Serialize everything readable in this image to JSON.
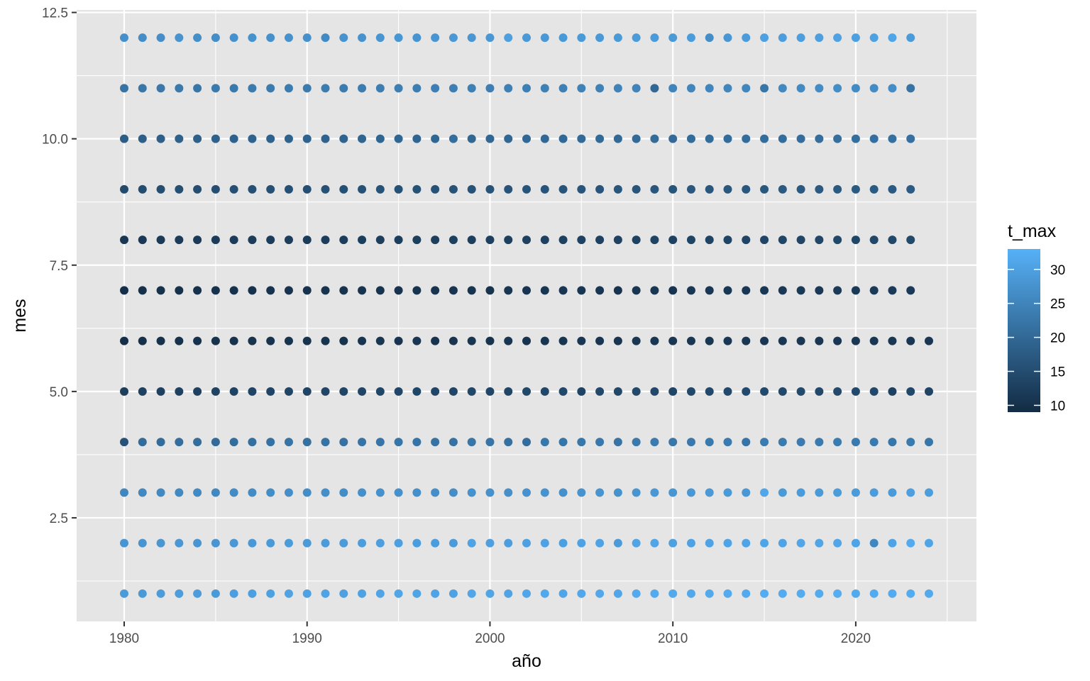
{
  "chart_data": {
    "type": "scatter",
    "title": "",
    "xlabel": "año",
    "ylabel": "mes",
    "xlim": [
      1977.4,
      2026.6
    ],
    "ylim": [
      0.45,
      12.55
    ],
    "x_ticks": [
      1980,
      1990,
      2000,
      2010,
      2020
    ],
    "x_tick_labels": [
      "1980",
      "1990",
      "2000",
      "2010",
      "2020"
    ],
    "y_ticks": [
      2.5,
      5.0,
      7.5,
      10.0,
      12.5
    ],
    "y_tick_labels": [
      "2.5",
      "5.0",
      "7.5",
      "10.0",
      "12.5"
    ],
    "grid": true,
    "legend": {
      "title": "t_max",
      "placement": "right",
      "min": 9,
      "max": 33,
      "ticks": [
        10,
        15,
        20,
        25,
        30
      ],
      "tick_labels": [
        "10",
        "15",
        "20",
        "25",
        "30"
      ],
      "color_low": "#132B43",
      "color_high": "#56B1F7"
    },
    "colors": {
      "panel_background": "#e5e5e5",
      "grid_line": "#ffffff"
    },
    "x_start": 1980,
    "series": [
      {
        "mes": 1,
        "t_max": [
          29.0,
          28.8,
          29.2,
          29.5,
          29.3,
          28.9,
          29.6,
          29.8,
          30.1,
          30.4,
          30.2,
          30.5,
          30.0,
          30.3,
          30.7,
          30.9,
          30.6,
          30.4,
          30.2,
          31.0,
          30.8,
          30.6,
          31.1,
          31.3,
          30.9,
          31.2,
          31.4,
          31.0,
          31.6,
          31.9,
          31.5,
          31.3,
          31.7,
          31.8,
          31.6,
          32.0,
          31.8,
          32.1,
          31.9,
          32.2,
          31.7,
          31.9,
          31.8,
          32.0,
          31.5
        ]
      },
      {
        "mes": 2,
        "t_max": [
          28.0,
          27.8,
          28.1,
          28.3,
          28.0,
          27.9,
          28.4,
          28.6,
          28.9,
          29.2,
          29.0,
          29.3,
          29.1,
          29.4,
          29.6,
          29.8,
          29.5,
          29.2,
          29.0,
          30.4,
          29.8,
          29.6,
          30.1,
          30.3,
          29.9,
          30.2,
          30.4,
          29.0,
          30.6,
          30.8,
          30.1,
          30.3,
          30.5,
          30.7,
          30.6,
          30.9,
          30.7,
          31.0,
          30.8,
          31.1,
          30.6,
          25.5,
          30.5,
          31.8,
          30.9
        ]
      },
      {
        "mes": 3,
        "t_max": [
          25.5,
          25.6,
          25.8,
          25.9,
          26.0,
          25.7,
          26.2,
          26.4,
          26.7,
          26.8,
          26.6,
          26.9,
          26.7,
          27.0,
          27.1,
          27.3,
          27.0,
          26.8,
          26.6,
          27.4,
          27.2,
          27.0,
          27.5,
          27.7,
          27.3,
          27.6,
          27.8,
          27.4,
          28.0,
          28.4,
          28.1,
          28.3,
          28.6,
          28.8,
          28.5,
          31.0,
          28.8,
          29.1,
          28.9,
          29.2,
          29.0,
          29.3,
          29.1,
          29.8,
          29.4
        ]
      },
      {
        "mes": 4,
        "t_max": [
          16.0,
          20.5,
          20.6,
          21.0,
          20.8,
          20.3,
          20.9,
          21.1,
          21.6,
          21.9,
          21.3,
          21.7,
          21.6,
          21.9,
          22.1,
          22.3,
          22.0,
          21.8,
          21.6,
          22.4,
          22.2,
          21.4,
          20.8,
          22.6,
          22.3,
          22.6,
          22.8,
          21.9,
          23.0,
          23.4,
          22.6,
          22.8,
          23.0,
          23.2,
          22.0,
          23.4,
          23.1,
          23.4,
          23.2,
          23.5,
          23.0,
          23.2,
          22.5,
          23.1,
          22.4
        ]
      },
      {
        "mes": 5,
        "t_max": [
          12.5,
          13.0,
          13.0,
          13.2,
          13.0,
          13.1,
          13.3,
          13.4,
          13.5,
          13.6,
          13.5,
          13.7,
          13.6,
          13.7,
          13.8,
          13.9,
          13.8,
          13.6,
          13.7,
          14.0,
          13.9,
          13.8,
          14.0,
          14.1,
          14.0,
          13.5,
          14.2,
          14.0,
          14.3,
          14.4,
          13.6,
          14.2,
          14.3,
          14.4,
          14.3,
          14.5,
          14.4,
          14.5,
          14.4,
          14.6,
          14.3,
          14.2,
          13.0,
          14.1,
          13.4
        ]
      },
      {
        "mes": 6,
        "t_max": [
          9.8,
          9.9,
          10.0,
          10.1,
          10.0,
          10.2,
          10.3,
          10.4,
          10.5,
          10.6,
          10.4,
          10.6,
          10.5,
          10.7,
          10.8,
          10.7,
          10.8,
          10.6,
          10.7,
          10.9,
          10.6,
          10.8,
          10.5,
          10.9,
          10.8,
          11.0,
          10.9,
          10.7,
          11.0,
          11.1,
          11.0,
          11.1,
          11.0,
          11.2,
          11.1,
          11.2,
          11.1,
          11.2,
          11.0,
          11.2,
          11.1,
          11.2,
          11.0,
          11.1,
          11.0
        ]
      },
      {
        "mes": 7,
        "t_max": [
          9.5,
          9.9,
          10.0,
          10.0,
          10.1,
          10.2,
          10.3,
          10.1,
          10.2,
          10.4,
          10.3,
          10.5,
          10.4,
          10.6,
          10.5,
          10.4,
          10.6,
          10.5,
          10.7,
          10.6,
          10.5,
          10.8,
          10.7,
          10.9,
          10.8,
          10.9,
          10.8,
          10.5,
          10.9,
          11.0,
          10.7,
          11.0,
          11.0,
          11.1,
          11.2,
          11.3,
          11.4,
          11.5,
          11.4,
          11.6,
          11.5,
          11.7,
          11.6,
          11.5
        ]
      },
      {
        "mes": 8,
        "t_max": [
          11.0,
          11.5,
          11.6,
          11.8,
          11.7,
          11.9,
          12.0,
          12.1,
          12.0,
          12.2,
          12.1,
          12.3,
          12.2,
          12.4,
          12.5,
          12.4,
          12.6,
          12.5,
          12.7,
          12.6,
          12.8,
          12.7,
          12.9,
          13.0,
          12.9,
          13.1,
          13.0,
          13.2,
          13.1,
          13.3,
          13.2,
          13.4,
          13.3,
          13.5,
          13.4,
          13.6,
          13.8,
          13.7,
          13.9,
          14.0,
          13.8,
          14.1,
          14.0,
          14.2
        ]
      },
      {
        "mes": 9,
        "t_max": [
          14.5,
          14.9,
          15.0,
          15.2,
          15.1,
          15.3,
          15.4,
          15.5,
          15.4,
          15.6,
          15.5,
          15.7,
          15.6,
          15.8,
          15.9,
          15.8,
          16.0,
          15.9,
          16.1,
          16.0,
          16.2,
          16.1,
          16.3,
          16.4,
          16.3,
          16.5,
          16.4,
          16.6,
          16.5,
          16.7,
          16.6,
          16.8,
          16.7,
          16.9,
          16.8,
          17.0,
          17.2,
          17.1,
          17.3,
          17.4,
          17.2,
          17.5,
          17.4,
          17.6
        ]
      },
      {
        "mes": 10,
        "t_max": [
          18.0,
          18.3,
          18.4,
          18.6,
          18.5,
          18.7,
          18.8,
          18.9,
          18.8,
          19.0,
          19.1,
          19.0,
          19.2,
          19.3,
          19.4,
          19.5,
          19.4,
          19.6,
          21.0,
          19.7,
          19.8,
          19.7,
          19.9,
          20.0,
          19.9,
          20.1,
          20.2,
          20.1,
          20.3,
          20.4,
          20.3,
          20.5,
          20.4,
          20.6,
          20.7,
          20.8,
          20.7,
          20.9,
          21.0,
          21.1,
          21.0,
          21.2,
          21.3,
          21.4
        ]
      },
      {
        "mes": 11,
        "t_max": [
          22.0,
          22.6,
          22.8,
          23.0,
          22.5,
          23.1,
          23.0,
          23.3,
          23.4,
          23.5,
          23.3,
          23.6,
          23.5,
          23.7,
          23.8,
          23.9,
          23.8,
          24.0,
          24.1,
          24.2,
          24.1,
          24.3,
          24.2,
          24.4,
          24.3,
          24.5,
          24.6,
          24.8,
          25.0,
          20.0,
          24.9,
          25.1,
          25.2,
          25.3,
          25.4,
          22.5,
          25.8,
          26.0,
          26.3,
          26.7,
          26.2,
          26.4,
          26.6,
          22.0
        ]
      },
      {
        "mes": 12,
        "t_max": [
          27.0,
          26.5,
          26.8,
          27.8,
          26.9,
          26.6,
          27.2,
          27.4,
          27.1,
          27.5,
          27.3,
          26.0,
          27.6,
          27.7,
          27.9,
          28.1,
          27.8,
          28.0,
          28.3,
          28.2,
          28.4,
          29.8,
          28.6,
          28.5,
          28.7,
          28.9,
          28.6,
          28.8,
          29.0,
          29.1,
          28.9,
          29.2,
          26.5,
          28.2,
          29.3,
          30.0,
          29.4,
          29.6,
          29.8,
          30.5,
          29.9,
          30.1,
          30.8,
          29.0
        ]
      }
    ]
  }
}
